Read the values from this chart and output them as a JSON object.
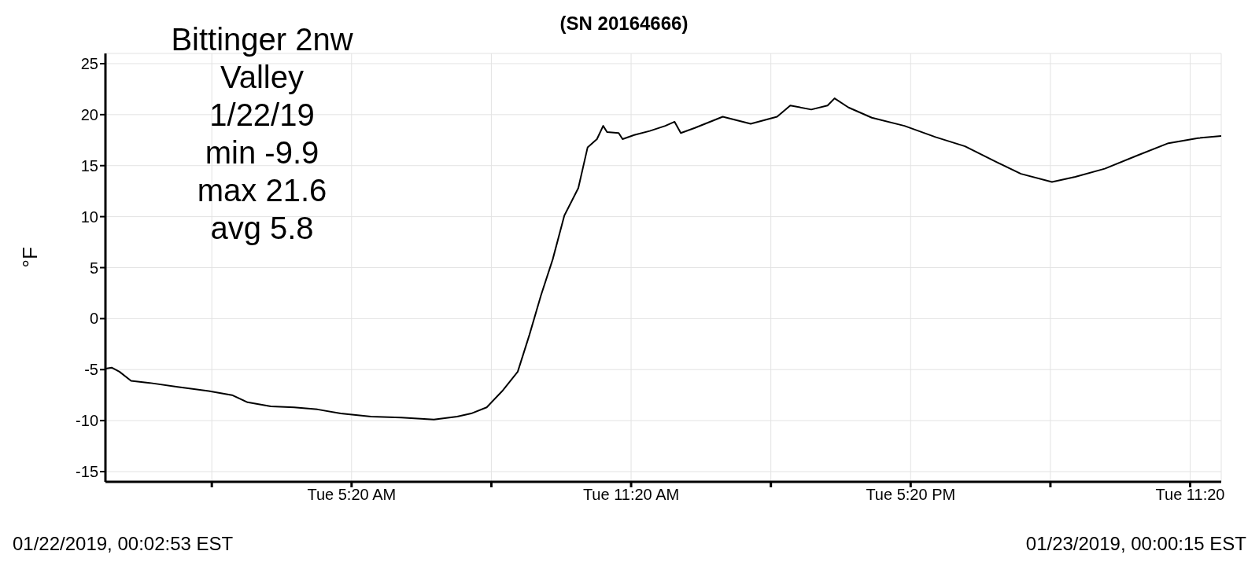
{
  "chart_data": {
    "type": "line",
    "title": "(SN 20164666)",
    "ylabel": "°F",
    "annotations": [
      "Bittinger 2nw\nValley\n1/22/19\nmin -9.9\nmax 21.6\navg 5.8",
      "01/22/2019, 00:02:53 EST",
      "01/23/2019, 00:00:15 EST"
    ],
    "x": [
      "2019-01-22T00:03",
      "2019-01-22T00:11",
      "2019-01-22T00:21",
      "2019-01-22T00:36",
      "2019-01-22T01:00",
      "2019-01-22T01:36",
      "2019-01-22T02:16",
      "2019-01-22T02:46",
      "2019-01-22T03:06",
      "2019-01-22T03:36",
      "2019-01-22T04:06",
      "2019-01-22T04:36",
      "2019-01-22T05:06",
      "2019-01-22T05:45",
      "2019-01-22T06:24",
      "2019-01-22T07:06",
      "2019-01-22T07:36",
      "2019-01-22T07:54",
      "2019-01-22T08:14",
      "2019-01-22T08:34",
      "2019-01-22T08:54",
      "2019-01-22T09:09",
      "2019-01-22T09:24",
      "2019-01-22T09:39",
      "2019-01-22T09:54",
      "2019-01-22T10:12",
      "2019-01-22T10:24",
      "2019-01-22T10:36",
      "2019-01-22T10:44",
      "2019-01-22T10:49",
      "2019-01-22T11:04",
      "2019-01-22T11:09",
      "2019-01-22T11:24",
      "2019-01-22T11:44",
      "2019-01-22T12:04",
      "2019-01-22T12:16",
      "2019-01-22T12:24",
      "2019-01-22T12:42",
      "2019-01-22T13:18",
      "2019-01-22T13:54",
      "2019-01-22T14:28",
      "2019-01-22T14:45",
      "2019-01-22T15:12",
      "2019-01-22T15:33",
      "2019-01-22T15:42",
      "2019-01-22T16:00",
      "2019-01-22T16:30",
      "2019-01-22T17:12",
      "2019-01-22T17:52",
      "2019-01-22T18:30",
      "2019-01-22T19:12",
      "2019-01-22T19:42",
      "2019-01-22T20:22",
      "2019-01-22T20:52",
      "2019-01-22T21:30",
      "2019-01-22T22:12",
      "2019-01-22T22:52",
      "2019-01-22T23:30",
      "2019-01-23T00:00"
    ],
    "series": [
      {
        "color": "#000000",
        "values": [
          -4.9,
          -4.8,
          -5.2,
          -6.1,
          -6.3,
          -6.7,
          -7.1,
          -7.5,
          -8.2,
          -8.6,
          -8.7,
          -8.9,
          -9.3,
          -9.6,
          -9.7,
          -9.9,
          -9.6,
          -9.3,
          -8.7,
          -7.1,
          -5.2,
          -1.6,
          2.3,
          5.8,
          10.1,
          12.8,
          16.8,
          17.6,
          18.9,
          18.3,
          18.2,
          17.6,
          18.0,
          18.4,
          18.9,
          19.3,
          18.2,
          18.7,
          19.8,
          19.1,
          19.8,
          20.9,
          20.5,
          20.9,
          21.6,
          20.7,
          19.7,
          18.9,
          17.8,
          16.9,
          15.3,
          14.2,
          13.4,
          13.9,
          14.7,
          16.0,
          17.2,
          17.7,
          17.9
        ]
      }
    ],
    "xlim": [
      "2019-01-22T00:03",
      "2019-01-23T00:00"
    ],
    "xticks": [
      {
        "value": "2019-01-22T02:20",
        "label": null
      },
      {
        "value": "2019-01-22T05:20",
        "label": "Tue 5:20 AM"
      },
      {
        "value": "2019-01-22T08:20",
        "label": null
      },
      {
        "value": "2019-01-22T11:20",
        "label": "Tue 11:20 AM"
      },
      {
        "value": "2019-01-22T14:20",
        "label": null
      },
      {
        "value": "2019-01-22T17:20",
        "label": "Tue 5:20 PM"
      },
      {
        "value": "2019-01-22T20:20",
        "label": null
      },
      {
        "value": "2019-01-22T23:20",
        "label": "Tue 11:20"
      }
    ],
    "ylim": [
      -16,
      26
    ],
    "yticks": [
      -15,
      -10,
      -5,
      0,
      5,
      10,
      15,
      20,
      25
    ],
    "grid": true,
    "marker": "none",
    "line_style": "solid",
    "legend": false
  }
}
